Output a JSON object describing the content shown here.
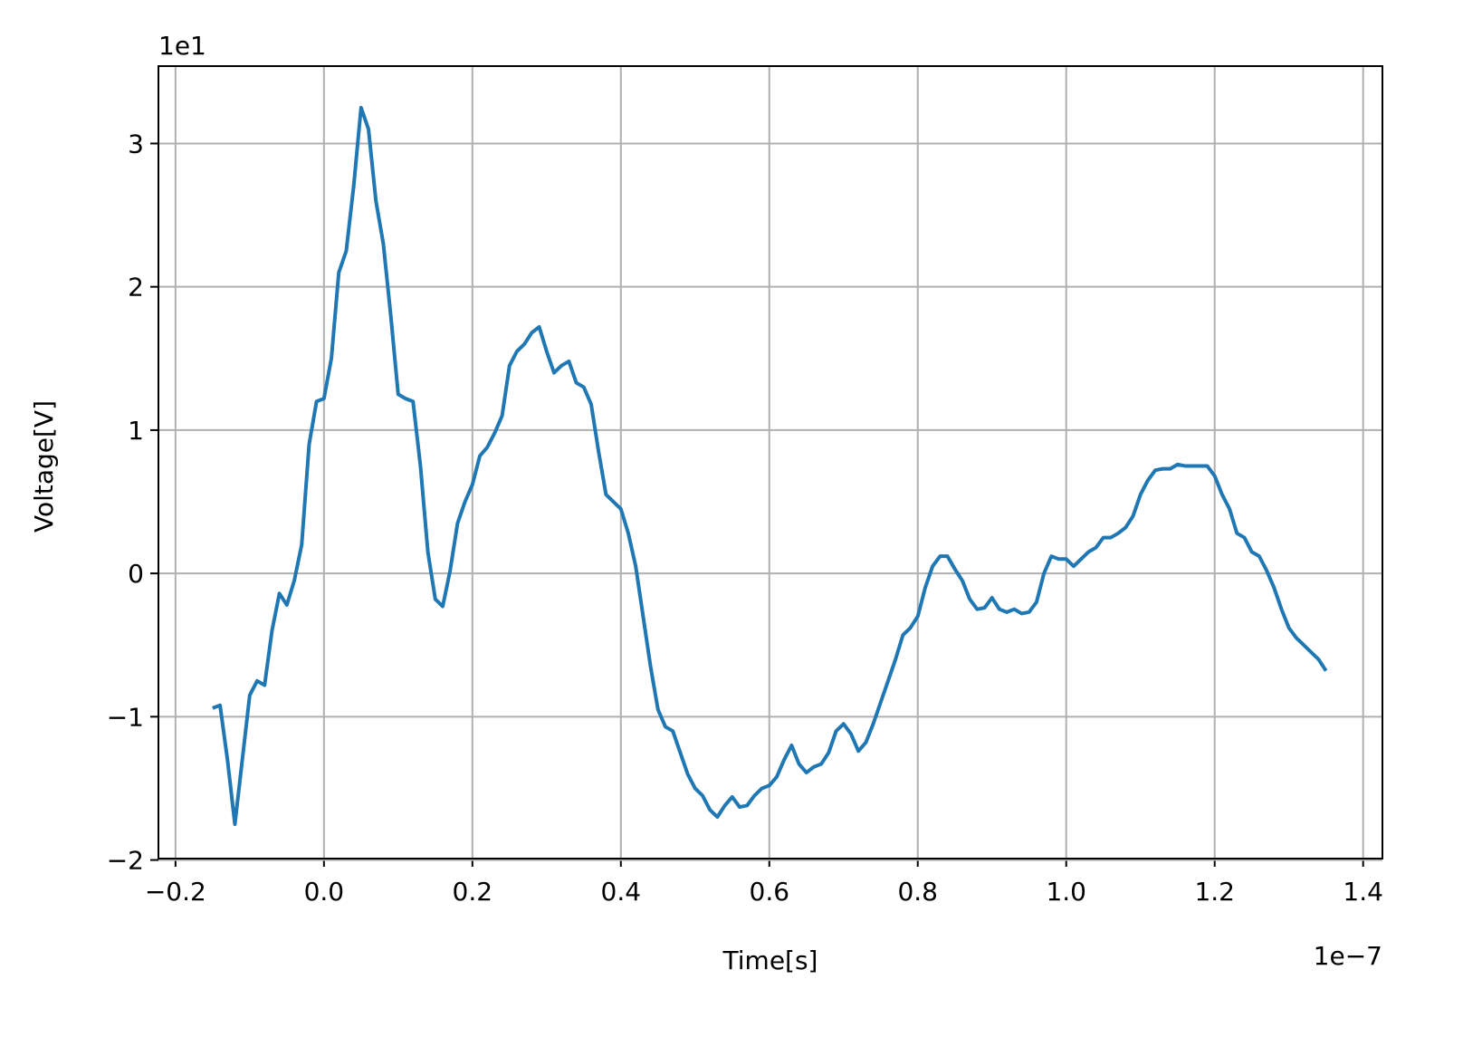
{
  "chart_data": {
    "type": "line",
    "x_label": "Time[s]",
    "y_label": "Voltage[V]",
    "x_offset_label": "1e−7",
    "y_offset_label": "1e1",
    "xlim": [
      -0.223,
      1.426
    ],
    "ylim": [
      -1.99,
      3.54
    ],
    "xticks": [
      {
        "value": -0.2,
        "label": "−0.2"
      },
      {
        "value": 0,
        "label": "0.0"
      },
      0.2,
      0.4,
      0.6,
      0.8,
      {
        "value": 1,
        "label": "1.0"
      },
      1.2,
      1.4
    ],
    "yticks": [
      {
        "value": -2,
        "label": "−2"
      },
      {
        "value": -1,
        "label": "−1"
      },
      0,
      1,
      2,
      3
    ],
    "grid": true,
    "x": [
      -0.15,
      -0.14,
      -0.13,
      -0.12,
      -0.11,
      -0.1,
      -0.09,
      -0.08,
      -0.07,
      -0.06,
      -0.05,
      -0.04,
      -0.03,
      -0.02,
      -0.01,
      0.0,
      0.01,
      0.02,
      0.03,
      0.04,
      0.05,
      0.06,
      0.07,
      0.08,
      0.09,
      0.1,
      0.11,
      0.12,
      0.13,
      0.14,
      0.15,
      0.16,
      0.17,
      0.18,
      0.19,
      0.2,
      0.21,
      0.22,
      0.23,
      0.24,
      0.25,
      0.26,
      0.27,
      0.28,
      0.29,
      0.3,
      0.31,
      0.32,
      0.33,
      0.34,
      0.35,
      0.36,
      0.37,
      0.38,
      0.39,
      0.4,
      0.41,
      0.42,
      0.43,
      0.44,
      0.45,
      0.46,
      0.47,
      0.48,
      0.49,
      0.5,
      0.51,
      0.52,
      0.53,
      0.54,
      0.55,
      0.56,
      0.57,
      0.58,
      0.59,
      0.6,
      0.61,
      0.62,
      0.63,
      0.64,
      0.65,
      0.66,
      0.67,
      0.68,
      0.69,
      0.7,
      0.71,
      0.72,
      0.73,
      0.74,
      0.75,
      0.76,
      0.77,
      0.78,
      0.79,
      0.8,
      0.81,
      0.82,
      0.83,
      0.84,
      0.85,
      0.86,
      0.87,
      0.88,
      0.89,
      0.9,
      0.91,
      0.92,
      0.93,
      0.94,
      0.95,
      0.96,
      0.97,
      0.98,
      0.99,
      1.0,
      1.01,
      1.02,
      1.03,
      1.04,
      1.05,
      1.06,
      1.07,
      1.08,
      1.09,
      1.1,
      1.11,
      1.12,
      1.13,
      1.14,
      1.15,
      1.16,
      1.17,
      1.18,
      1.19,
      1.2,
      1.21,
      1.22,
      1.23,
      1.24,
      1.25,
      1.26,
      1.27,
      1.28,
      1.29,
      1.3,
      1.31,
      1.32,
      1.33,
      1.34,
      1.35
    ],
    "series": [
      {
        "color": "#1f77b4",
        "values": [
          -0.94,
          -0.92,
          -1.3,
          -1.75,
          -1.3,
          -0.85,
          -0.75,
          -0.78,
          -0.4,
          -0.14,
          -0.22,
          -0.05,
          0.2,
          0.9,
          1.2,
          1.22,
          1.5,
          2.1,
          2.25,
          2.7,
          3.25,
          3.1,
          2.6,
          2.3,
          1.8,
          1.25,
          1.22,
          1.2,
          0.75,
          0.15,
          -0.18,
          -0.23,
          0.02,
          0.35,
          0.5,
          0.62,
          0.82,
          0.88,
          0.98,
          1.1,
          1.45,
          1.55,
          1.6,
          1.68,
          1.72,
          1.55,
          1.4,
          1.45,
          1.48,
          1.33,
          1.3,
          1.18,
          0.85,
          0.55,
          0.5,
          0.45,
          0.28,
          0.05,
          -0.3,
          -0.65,
          -0.95,
          -1.07,
          -1.1,
          -1.25,
          -1.4,
          -1.5,
          -1.55,
          -1.65,
          -1.7,
          -1.62,
          -1.56,
          -1.63,
          -1.62,
          -1.55,
          -1.5,
          -1.48,
          -1.42,
          -1.3,
          -1.2,
          -1.33,
          -1.39,
          -1.35,
          -1.33,
          -1.25,
          -1.1,
          -1.05,
          -1.12,
          -1.24,
          -1.18,
          -1.05,
          -0.9,
          -0.75,
          -0.6,
          -0.43,
          -0.38,
          -0.3,
          -0.1,
          0.05,
          0.12,
          0.12,
          0.03,
          -0.05,
          -0.18,
          -0.25,
          -0.24,
          -0.17,
          -0.25,
          -0.27,
          -0.25,
          -0.28,
          -0.27,
          -0.2,
          0.0,
          0.12,
          0.1,
          0.1,
          0.05,
          0.1,
          0.15,
          0.18,
          0.25,
          0.25,
          0.28,
          0.32,
          0.4,
          0.55,
          0.65,
          0.72,
          0.73,
          0.73,
          0.76,
          0.75,
          0.75,
          0.75,
          0.75,
          0.68,
          0.55,
          0.45,
          0.28,
          0.25,
          0.15,
          0.12,
          0.02,
          -0.1,
          -0.25,
          -0.38,
          -0.45,
          -0.5,
          -0.55,
          -0.6,
          -0.68
        ]
      }
    ]
  }
}
